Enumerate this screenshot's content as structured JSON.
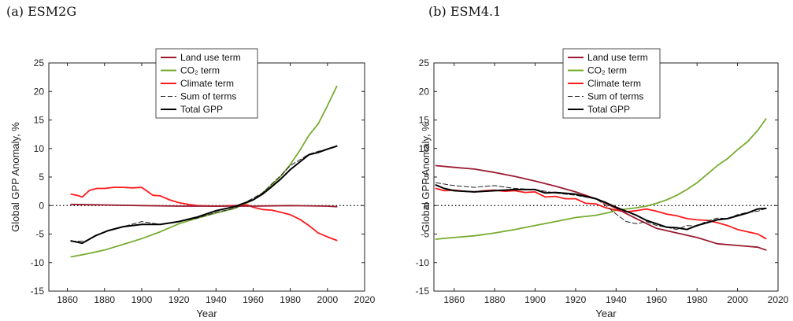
{
  "chart_data": [
    {
      "type": "line",
      "panel_title": "(a) ESM2G",
      "xlabel": "Year",
      "ylabel": "Global GPP Anomaly, %",
      "xlim": [
        1850,
        2020
      ],
      "ylim": [
        -15,
        25
      ],
      "xticks": [
        1860,
        1880,
        1900,
        1920,
        1940,
        1960,
        1980,
        2000,
        2020
      ],
      "yticks": [
        -15,
        -10,
        -5,
        0,
        5,
        10,
        15,
        20,
        25
      ],
      "zero_line": "dotted",
      "legend_position": "top-center",
      "series": [
        {
          "name": "Land use term",
          "color": "#9b1b30",
          "style": "solid",
          "x": [
            1862,
            1880,
            1900,
            1920,
            1940,
            1960,
            1980,
            2000,
            2005
          ],
          "y": [
            0.2,
            0.1,
            0.0,
            -0.1,
            -0.1,
            -0.1,
            0.0,
            -0.1,
            -0.2
          ]
        },
        {
          "name": "CO₂ term",
          "color": "#77ac30",
          "style": "solid",
          "x": [
            1862,
            1870,
            1880,
            1890,
            1900,
            1910,
            1920,
            1930,
            1940,
            1950,
            1955,
            1960,
            1965,
            1970,
            1975,
            1980,
            1985,
            1990,
            1995,
            2000,
            2005
          ],
          "y": [
            -9.0,
            -8.5,
            -7.8,
            -6.8,
            -5.8,
            -4.6,
            -3.2,
            -2.2,
            -1.3,
            -0.5,
            0.2,
            1.0,
            2.2,
            3.6,
            5.2,
            7.2,
            9.6,
            12.3,
            14.3,
            17.5,
            20.9
          ]
        },
        {
          "name": "Climate term",
          "color": "#ff1a1a",
          "style": "solid",
          "x": [
            1862,
            1865,
            1868,
            1872,
            1876,
            1880,
            1885,
            1890,
            1895,
            1900,
            1903,
            1906,
            1910,
            1915,
            1920,
            1925,
            1930,
            1940,
            1950,
            1957,
            1960,
            1965,
            1970,
            1975,
            1980,
            1985,
            1990,
            1995,
            2000,
            2005
          ],
          "y": [
            2.0,
            1.8,
            1.5,
            2.7,
            3.0,
            3.0,
            3.2,
            3.2,
            3.1,
            3.2,
            2.5,
            1.8,
            1.7,
            1.0,
            0.5,
            0.2,
            0.0,
            -0.1,
            0.0,
            0.1,
            -0.3,
            -0.7,
            -0.8,
            -1.2,
            -1.6,
            -2.4,
            -3.5,
            -4.8,
            -5.5,
            -6.1
          ]
        },
        {
          "name": "Sum of terms",
          "color": "#222222",
          "style": "dashed",
          "x": [
            1862,
            1870,
            1880,
            1890,
            1900,
            1910,
            1920,
            1930,
            1940,
            1950,
            1960,
            1965,
            1970,
            1975,
            1980,
            1985,
            1990,
            1995,
            2000,
            2005
          ],
          "y": [
            -6.3,
            -6.2,
            -4.6,
            -3.7,
            -2.8,
            -3.3,
            -2.8,
            -2.2,
            -1.2,
            -0.5,
            1.3,
            2.2,
            3.8,
            5.3,
            7.0,
            8.0,
            9.0,
            9.5,
            9.9,
            10.5
          ]
        },
        {
          "name": "Total GPP",
          "color": "#000000",
          "style": "solid",
          "x": [
            1862,
            1868,
            1875,
            1882,
            1890,
            1900,
            1910,
            1920,
            1930,
            1940,
            1950,
            1960,
            1965,
            1970,
            1975,
            1980,
            1985,
            1990,
            1995,
            2000,
            2005
          ],
          "y": [
            -6.2,
            -6.6,
            -5.3,
            -4.4,
            -3.7,
            -3.3,
            -3.3,
            -2.8,
            -2.0,
            -0.9,
            -0.2,
            1.0,
            2.0,
            3.3,
            4.7,
            6.3,
            7.6,
            8.9,
            9.3,
            9.9,
            10.4
          ]
        }
      ]
    },
    {
      "type": "line",
      "panel_title": "(b) ESM4.1",
      "xlabel": "Year",
      "ylabel": "Global GPP Anomaly, %",
      "xlim": [
        1850,
        2020
      ],
      "ylim": [
        -15,
        25
      ],
      "xticks": [
        1860,
        1880,
        1900,
        1920,
        1940,
        1960,
        1980,
        2000,
        2020
      ],
      "yticks": [
        -15,
        -10,
        -5,
        0,
        5,
        10,
        15,
        20,
        25
      ],
      "zero_line": "dotted",
      "legend_position": "top-center",
      "series": [
        {
          "name": "Land use term",
          "color": "#9b1b30",
          "style": "solid",
          "x": [
            1851,
            1860,
            1870,
            1880,
            1890,
            1900,
            1910,
            1920,
            1930,
            1940,
            1950,
            1960,
            1970,
            1980,
            1990,
            2000,
            2010,
            2014
          ],
          "y": [
            7.0,
            6.7,
            6.4,
            5.8,
            5.1,
            4.3,
            3.4,
            2.4,
            1.2,
            -0.5,
            -2.3,
            -4.0,
            -4.8,
            -5.6,
            -6.7,
            -7.0,
            -7.3,
            -7.8
          ]
        },
        {
          "name": "CO₂ term",
          "color": "#77ac30",
          "style": "solid",
          "x": [
            1851,
            1860,
            1870,
            1880,
            1890,
            1900,
            1910,
            1920,
            1930,
            1937,
            1940,
            1945,
            1950,
            1955,
            1960,
            1965,
            1970,
            1975,
            1980,
            1985,
            1990,
            1995,
            2000,
            2005,
            2010,
            2014
          ],
          "y": [
            -5.9,
            -5.6,
            -5.3,
            -4.8,
            -4.2,
            -3.5,
            -2.8,
            -2.1,
            -1.7,
            -1.2,
            -0.8,
            -0.6,
            -0.4,
            -0.1,
            0.4,
            1.0,
            1.8,
            2.8,
            4.0,
            5.5,
            7.0,
            8.2,
            9.8,
            11.2,
            13.2,
            15.2
          ]
        },
        {
          "name": "Climate term",
          "color": "#ff1a1a",
          "style": "solid",
          "x": [
            1851,
            1855,
            1860,
            1865,
            1870,
            1875,
            1880,
            1885,
            1890,
            1895,
            1900,
            1905,
            1910,
            1915,
            1920,
            1925,
            1930,
            1935,
            1940,
            1945,
            1950,
            1955,
            1960,
            1965,
            1970,
            1975,
            1980,
            1985,
            1990,
            1995,
            2000,
            2005,
            2010,
            2014
          ],
          "y": [
            3.0,
            2.6,
            2.7,
            2.5,
            2.4,
            2.6,
            2.7,
            2.5,
            2.6,
            2.3,
            2.4,
            1.5,
            1.6,
            1.2,
            1.2,
            0.4,
            0.3,
            -0.4,
            -0.8,
            -1.1,
            -0.9,
            -0.6,
            -1.0,
            -1.5,
            -1.8,
            -2.3,
            -2.5,
            -2.6,
            -3.0,
            -3.5,
            -4.2,
            -4.6,
            -5.0,
            -5.8
          ]
        },
        {
          "name": "Sum of terms",
          "color": "#222222",
          "style": "dashed",
          "x": [
            1851,
            1860,
            1870,
            1880,
            1890,
            1900,
            1910,
            1920,
            1930,
            1935,
            1940,
            1945,
            1950,
            1955,
            1960,
            1965,
            1970,
            1975,
            1980,
            1985,
            1990,
            1995,
            2000,
            2005,
            2010,
            2014
          ],
          "y": [
            4.0,
            3.5,
            3.2,
            3.5,
            3.0,
            2.8,
            2.2,
            1.8,
            1.2,
            0.0,
            -1.5,
            -2.8,
            -3.2,
            -2.8,
            -3.5,
            -3.8,
            -4.2,
            -3.5,
            -3.6,
            -2.7,
            -2.2,
            -2.3,
            -1.6,
            -1.2,
            -1.0,
            -0.5
          ]
        },
        {
          "name": "Total GPP",
          "color": "#000000",
          "style": "solid",
          "x": [
            1851,
            1855,
            1860,
            1870,
            1880,
            1890,
            1900,
            1905,
            1910,
            1920,
            1930,
            1935,
            1940,
            1945,
            1950,
            1955,
            1960,
            1965,
            1970,
            1975,
            1980,
            1985,
            1990,
            1995,
            2000,
            2005,
            2010,
            2014
          ],
          "y": [
            3.6,
            3.0,
            2.6,
            2.4,
            2.6,
            2.8,
            2.8,
            2.2,
            2.3,
            2.0,
            1.2,
            0.5,
            -0.3,
            -1.0,
            -1.7,
            -2.6,
            -3.2,
            -3.8,
            -3.9,
            -4.2,
            -3.5,
            -3.0,
            -2.5,
            -2.3,
            -1.8,
            -1.3,
            -0.6,
            -0.5
          ]
        }
      ]
    }
  ]
}
